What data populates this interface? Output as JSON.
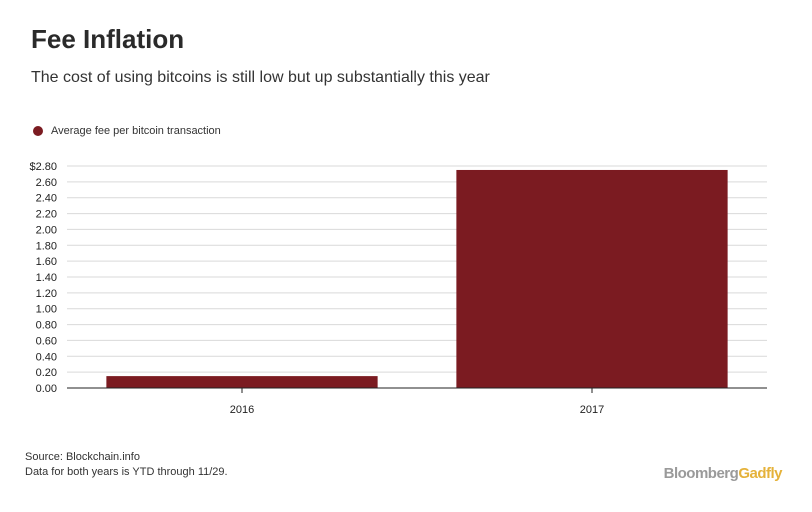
{
  "header": {
    "title": "Fee Inflation",
    "subtitle": "The cost of using bitcoins is still low but up substantially this year"
  },
  "legend": {
    "label": "Average fee per bitcoin transaction",
    "color": "#7b1b21"
  },
  "footer": {
    "source": "Source: Blockchain.info",
    "note": "Data for both years is YTD through 11/29."
  },
  "brand": {
    "part1": "Bloomberg",
    "part2": "Gadfly"
  },
  "chart_data": {
    "type": "bar",
    "categories": [
      "2016",
      "2017"
    ],
    "series": [
      {
        "name": "Average fee per bitcoin transaction",
        "values": [
          0.15,
          2.75
        ]
      }
    ],
    "ylim": [
      0,
      2.8
    ],
    "yticks": [
      {
        "value": 0.0,
        "label": "0.00"
      },
      {
        "value": 0.2,
        "label": "0.20"
      },
      {
        "value": 0.4,
        "label": "0.40"
      },
      {
        "value": 0.6,
        "label": "0.60"
      },
      {
        "value": 0.8,
        "label": "0.80"
      },
      {
        "value": 1.0,
        "label": "1.00"
      },
      {
        "value": 1.2,
        "label": "1.20"
      },
      {
        "value": 1.4,
        "label": "1.40"
      },
      {
        "value": 1.6,
        "label": "1.60"
      },
      {
        "value": 1.8,
        "label": "1.80"
      },
      {
        "value": 2.0,
        "label": "2.00"
      },
      {
        "value": 2.2,
        "label": "2.20"
      },
      {
        "value": 2.4,
        "label": "2.40"
      },
      {
        "value": 2.6,
        "label": "2.60"
      },
      {
        "value": 2.8,
        "label": "$2.80"
      }
    ],
    "grid": true,
    "bar_color": "#7b1b21"
  }
}
